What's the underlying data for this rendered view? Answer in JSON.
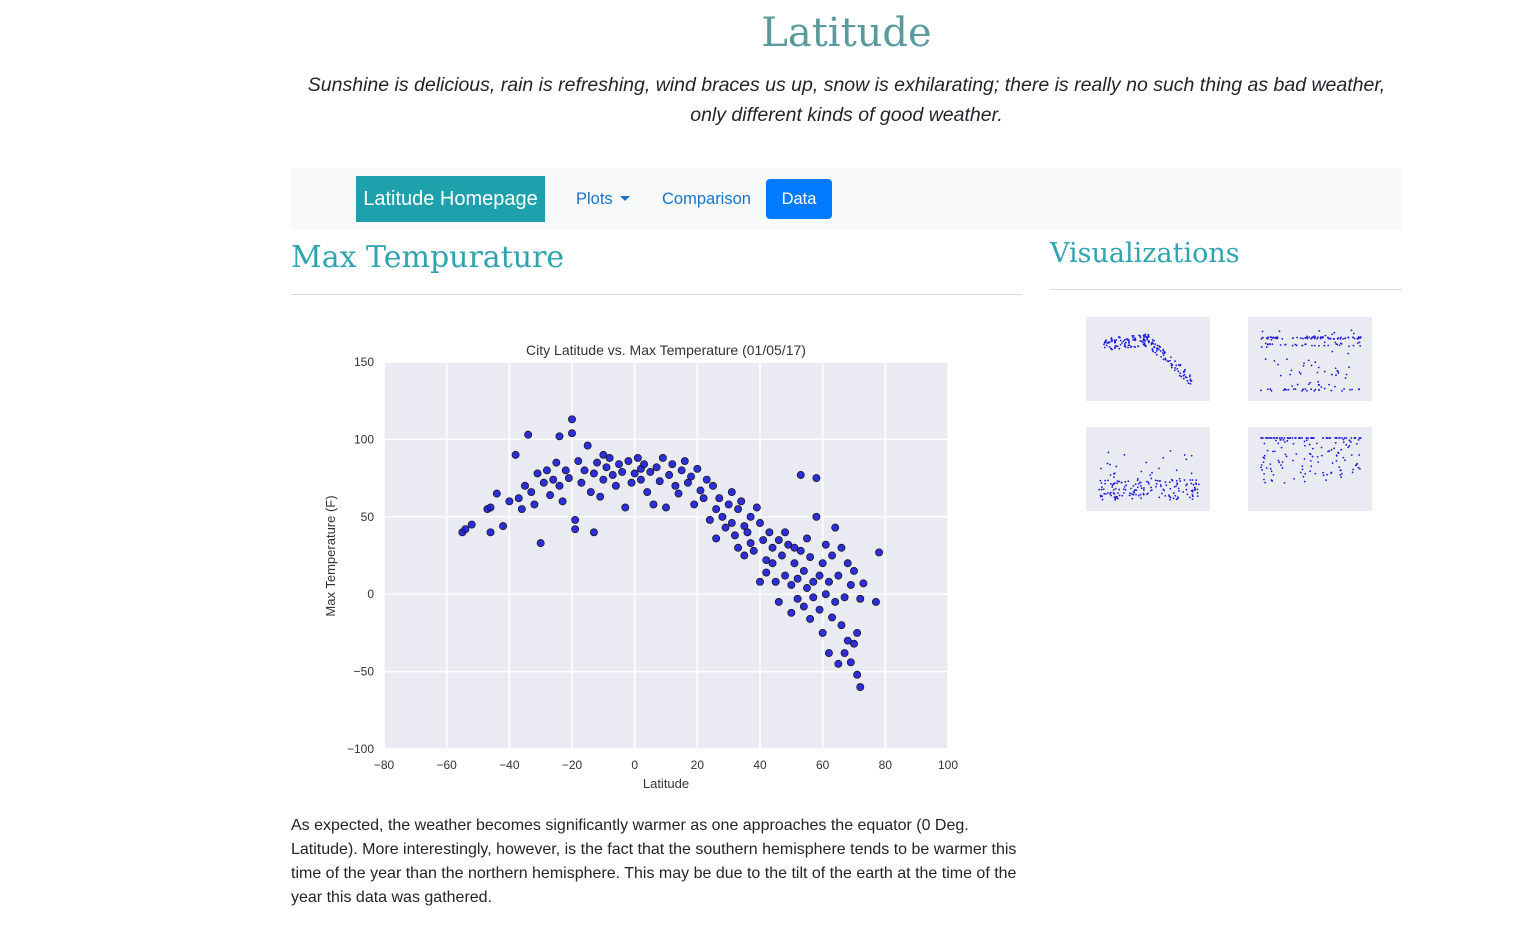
{
  "header": {
    "title": "Latitude",
    "quote": "Sunshine is delicious, rain is refreshing, wind braces us up, snow is exhilarating; there is really no such thing as bad weather, only different kinds of good weather."
  },
  "navbar": {
    "brand": "Latitude Homepage",
    "plots": "Plots",
    "comparison": "Comparison",
    "data": "Data"
  },
  "main": {
    "heading": "Max Tempurature",
    "description": "As expected, the weather becomes significantly warmer as one approaches the equator (0 Deg. Latitude). More interestingly, however, is the fact that the southern hemisphere tends to be warmer this time of the year than the northern hemisphere. This may be due to the tilt of the earth at the time of the year this data was gathered."
  },
  "sidebar": {
    "heading": "Visualizations"
  },
  "colors": {
    "accent": "#2fa4b0",
    "brand_bg": "#1fa0ad",
    "active_nav": "#007bff",
    "plot_bg": "#eaeaf2",
    "marker": "#1a1ad6"
  },
  "chart_data": {
    "type": "scatter",
    "title": "City Latitude vs. Max Temperature (01/05/17)",
    "xlabel": "Latitude",
    "ylabel": "Max Temperature (F)",
    "xlim": [
      -80,
      100
    ],
    "ylim": [
      -100,
      150
    ],
    "xticks": [
      "−80",
      "−60",
      "−40",
      "−20",
      "0",
      "20",
      "40",
      "60",
      "80",
      "100"
    ],
    "yticks": [
      "150",
      "100",
      "50",
      "0",
      "−50",
      "−100"
    ],
    "grid": true,
    "points": [
      [
        -55,
        40
      ],
      [
        -54,
        42
      ],
      [
        -52,
        45
      ],
      [
        -47,
        55
      ],
      [
        -46,
        56
      ],
      [
        -46,
        40
      ],
      [
        -44,
        65
      ],
      [
        -42,
        44
      ],
      [
        -40,
        60
      ],
      [
        -38,
        90
      ],
      [
        -37,
        62
      ],
      [
        -36,
        55
      ],
      [
        -35,
        70
      ],
      [
        -34,
        103
      ],
      [
        -33,
        66
      ],
      [
        -32,
        58
      ],
      [
        -31,
        78
      ],
      [
        -30,
        33
      ],
      [
        -29,
        72
      ],
      [
        -28,
        80
      ],
      [
        -27,
        64
      ],
      [
        -26,
        74
      ],
      [
        -25,
        85
      ],
      [
        -24,
        102
      ],
      [
        -24,
        70
      ],
      [
        -23,
        60
      ],
      [
        -22,
        80
      ],
      [
        -21,
        75
      ],
      [
        -20,
        113
      ],
      [
        -20,
        104
      ],
      [
        -19,
        48
      ],
      [
        -19,
        42
      ],
      [
        -18,
        86
      ],
      [
        -17,
        72
      ],
      [
        -16,
        80
      ],
      [
        -15,
        96
      ],
      [
        -14,
        66
      ],
      [
        -13,
        40
      ],
      [
        -13,
        78
      ],
      [
        -12,
        85
      ],
      [
        -11,
        63
      ],
      [
        -10,
        90
      ],
      [
        -10,
        74
      ],
      [
        -9,
        82
      ],
      [
        -8,
        88
      ],
      [
        -7,
        77
      ],
      [
        -6,
        70
      ],
      [
        -5,
        84
      ],
      [
        -4,
        79
      ],
      [
        -3,
        56
      ],
      [
        -2,
        86
      ],
      [
        -1,
        72
      ],
      [
        0,
        78
      ],
      [
        1,
        88
      ],
      [
        2,
        81
      ],
      [
        2,
        74
      ],
      [
        3,
        84
      ],
      [
        4,
        66
      ],
      [
        5,
        79
      ],
      [
        6,
        58
      ],
      [
        7,
        82
      ],
      [
        8,
        73
      ],
      [
        9,
        88
      ],
      [
        10,
        56
      ],
      [
        11,
        77
      ],
      [
        12,
        84
      ],
      [
        13,
        70
      ],
      [
        14,
        65
      ],
      [
        15,
        80
      ],
      [
        16,
        86
      ],
      [
        17,
        72
      ],
      [
        18,
        76
      ],
      [
        19,
        58
      ],
      [
        20,
        81
      ],
      [
        21,
        67
      ],
      [
        22,
        62
      ],
      [
        23,
        74
      ],
      [
        24,
        48
      ],
      [
        25,
        70
      ],
      [
        26,
        36
      ],
      [
        26,
        55
      ],
      [
        27,
        62
      ],
      [
        28,
        50
      ],
      [
        29,
        43
      ],
      [
        30,
        58
      ],
      [
        31,
        46
      ],
      [
        31,
        66
      ],
      [
        32,
        38
      ],
      [
        33,
        55
      ],
      [
        33,
        30
      ],
      [
        34,
        60
      ],
      [
        35,
        44
      ],
      [
        35,
        25
      ],
      [
        36,
        40
      ],
      [
        37,
        50
      ],
      [
        37,
        33
      ],
      [
        38,
        28
      ],
      [
        39,
        56
      ],
      [
        40,
        46
      ],
      [
        40,
        8
      ],
      [
        41,
        35
      ],
      [
        42,
        22
      ],
      [
        42,
        14
      ],
      [
        43,
        40
      ],
      [
        44,
        30
      ],
      [
        44,
        20
      ],
      [
        45,
        8
      ],
      [
        46,
        35
      ],
      [
        46,
        -5
      ],
      [
        47,
        25
      ],
      [
        48,
        12
      ],
      [
        48,
        40
      ],
      [
        49,
        32
      ],
      [
        50,
        6
      ],
      [
        50,
        -12
      ],
      [
        51,
        30
      ],
      [
        51,
        20
      ],
      [
        52,
        -3
      ],
      [
        52,
        10
      ],
      [
        53,
        28
      ],
      [
        53,
        77
      ],
      [
        54,
        15
      ],
      [
        54,
        -8
      ],
      [
        55,
        36
      ],
      [
        55,
        4
      ],
      [
        56,
        -16
      ],
      [
        56,
        24
      ],
      [
        57,
        8
      ],
      [
        57,
        -2
      ],
      [
        58,
        50
      ],
      [
        58,
        75
      ],
      [
        59,
        12
      ],
      [
        59,
        -10
      ],
      [
        60,
        20
      ],
      [
        60,
        -25
      ],
      [
        61,
        0
      ],
      [
        61,
        32
      ],
      [
        62,
        -38
      ],
      [
        62,
        8
      ],
      [
        63,
        -15
      ],
      [
        63,
        25
      ],
      [
        64,
        -5
      ],
      [
        64,
        43
      ],
      [
        65,
        12
      ],
      [
        65,
        -45
      ],
      [
        66,
        -20
      ],
      [
        66,
        30
      ],
      [
        67,
        -2
      ],
      [
        67,
        -38
      ],
      [
        68,
        20
      ],
      [
        68,
        -30
      ],
      [
        69,
        -44
      ],
      [
        69,
        6
      ],
      [
        70,
        -32
      ],
      [
        70,
        15
      ],
      [
        71,
        -52
      ],
      [
        71,
        -25
      ],
      [
        72,
        -60
      ],
      [
        72,
        -3
      ],
      [
        73,
        7
      ],
      [
        78,
        27
      ],
      [
        77,
        -5
      ]
    ]
  }
}
